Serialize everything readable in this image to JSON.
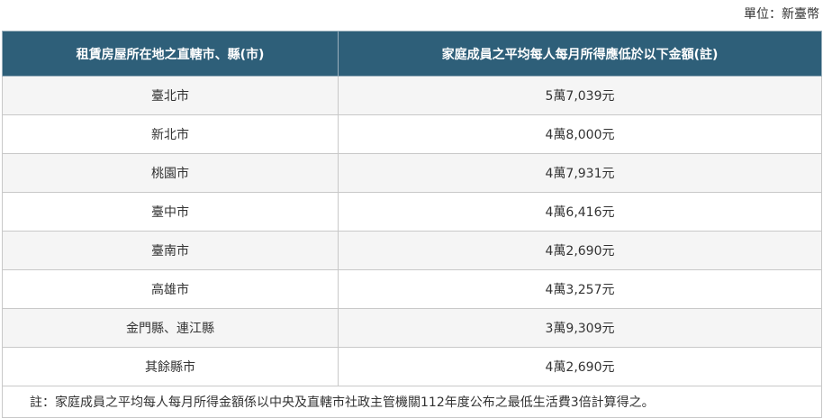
{
  "unit_label": "單位：新臺幣",
  "table": {
    "headers": [
      "租賃房屋所在地之直轄市、縣(市)",
      "家庭成員之平均每人每月所得應低於以下金額(註)"
    ],
    "rows": [
      {
        "region": "臺北市",
        "amount": "5萬7,039元"
      },
      {
        "region": "新北市",
        "amount": "4萬8,000元"
      },
      {
        "region": "桃園市",
        "amount": "4萬7,931元"
      },
      {
        "region": "臺中市",
        "amount": "4萬6,416元"
      },
      {
        "region": "臺南市",
        "amount": "4萬2,690元"
      },
      {
        "region": "高雄市",
        "amount": "4萬3,257元"
      },
      {
        "region": "金門縣、連江縣",
        "amount": "3萬9,309元"
      },
      {
        "region": "其餘縣市",
        "amount": "4萬2,690元"
      }
    ],
    "note": "註：家庭成員之平均每人每月所得金額係以中央及直轄市社政主管機關112年度公布之最低生活費3倍計算得之。"
  }
}
